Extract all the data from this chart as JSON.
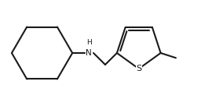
{
  "background_color": "#ffffff",
  "line_color": "#1a1a1a",
  "line_width": 1.5,
  "figure_width": 2.84,
  "figure_height": 1.36,
  "dpi": 100,
  "font_size_N": 7.5,
  "font_size_H": 6.5,
  "font_size_S": 8.0,
  "N_label": "N",
  "H_label": "H",
  "S_label": "S"
}
